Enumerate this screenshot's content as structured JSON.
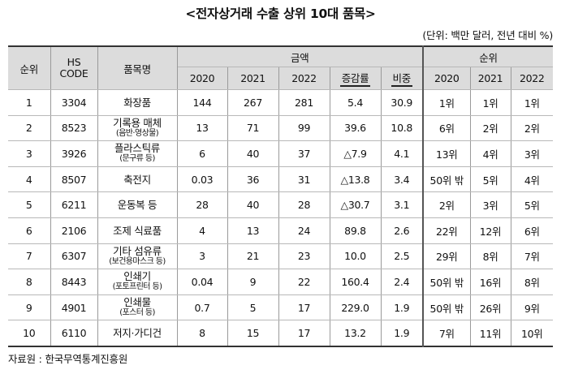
{
  "title": "<전자상거래 수출 상위 10대 품목>",
  "unit": "(단위: 백만 달러, 전년 대비 %)",
  "headers": {
    "rank": "순위",
    "hs_code": "HS CODE",
    "product": "품목명",
    "amount_group": "금액",
    "rank_group": "순위",
    "y2020": "2020",
    "y2021": "2021",
    "y2022": "2022",
    "growth": "증감률",
    "share": "비중",
    "r2020": "2020",
    "r2021": "2021",
    "r2022": "2022"
  },
  "rows": [
    {
      "rank": "1",
      "hs": "3304",
      "product": "화장품",
      "product_sub": "",
      "a2020": "144",
      "a2021": "267",
      "a2022": "281",
      "growth": "5.4",
      "share": "30.9",
      "r2020": "1위",
      "r2021": "1위",
      "r2022": "1위"
    },
    {
      "rank": "2",
      "hs": "8523",
      "product": "기록용 매체",
      "product_sub": "(음반·영상물)",
      "a2020": "13",
      "a2021": "71",
      "a2022": "99",
      "growth": "39.6",
      "share": "10.8",
      "r2020": "6위",
      "r2021": "2위",
      "r2022": "2위"
    },
    {
      "rank": "3",
      "hs": "3926",
      "product": "플라스틱류",
      "product_sub": "(문구류 등)",
      "a2020": "6",
      "a2021": "40",
      "a2022": "37",
      "growth": "△7.9",
      "share": "4.1",
      "r2020": "13위",
      "r2021": "4위",
      "r2022": "3위"
    },
    {
      "rank": "4",
      "hs": "8507",
      "product": "축전지",
      "product_sub": "",
      "a2020": "0.03",
      "a2021": "36",
      "a2022": "31",
      "growth": "△13.8",
      "share": "3.4",
      "r2020": "50위 밖",
      "r2021": "5위",
      "r2022": "4위"
    },
    {
      "rank": "5",
      "hs": "6211",
      "product": "운동복 등",
      "product_sub": "",
      "a2020": "28",
      "a2021": "40",
      "a2022": "28",
      "growth": "△30.7",
      "share": "3.1",
      "r2020": "2위",
      "r2021": "3위",
      "r2022": "5위"
    },
    {
      "rank": "6",
      "hs": "2106",
      "product": "조제 식료품",
      "product_sub": "",
      "a2020": "4",
      "a2021": "13",
      "a2022": "24",
      "growth": "89.8",
      "share": "2.6",
      "r2020": "22위",
      "r2021": "12위",
      "r2022": "6위"
    },
    {
      "rank": "7",
      "hs": "6307",
      "product": "기타 섬유류",
      "product_sub": "(보건용마스크 등)",
      "a2020": "3",
      "a2021": "21",
      "a2022": "23",
      "growth": "10.0",
      "share": "2.5",
      "r2020": "29위",
      "r2021": "8위",
      "r2022": "7위"
    },
    {
      "rank": "8",
      "hs": "8443",
      "product": "인쇄기",
      "product_sub": "(포토프린터 등)",
      "a2020": "0.04",
      "a2021": "9",
      "a2022": "22",
      "growth": "160.4",
      "share": "2.4",
      "r2020": "50위 밖",
      "r2021": "16위",
      "r2022": "8위"
    },
    {
      "rank": "9",
      "hs": "4901",
      "product": "인쇄물",
      "product_sub": "(포스터 등)",
      "a2020": "0.7",
      "a2021": "5",
      "a2022": "17",
      "growth": "229.0",
      "share": "1.9",
      "r2020": "50위 밖",
      "r2021": "26위",
      "r2022": "9위"
    },
    {
      "rank": "10",
      "hs": "6110",
      "product": "저지·가디건",
      "product_sub": "",
      "a2020": "8",
      "a2021": "15",
      "a2022": "17",
      "growth": "13.2",
      "share": "1.9",
      "r2020": "7위",
      "r2021": "11위",
      "r2022": "10위"
    }
  ],
  "source": "자료원 : 한국무역통계진흥원"
}
